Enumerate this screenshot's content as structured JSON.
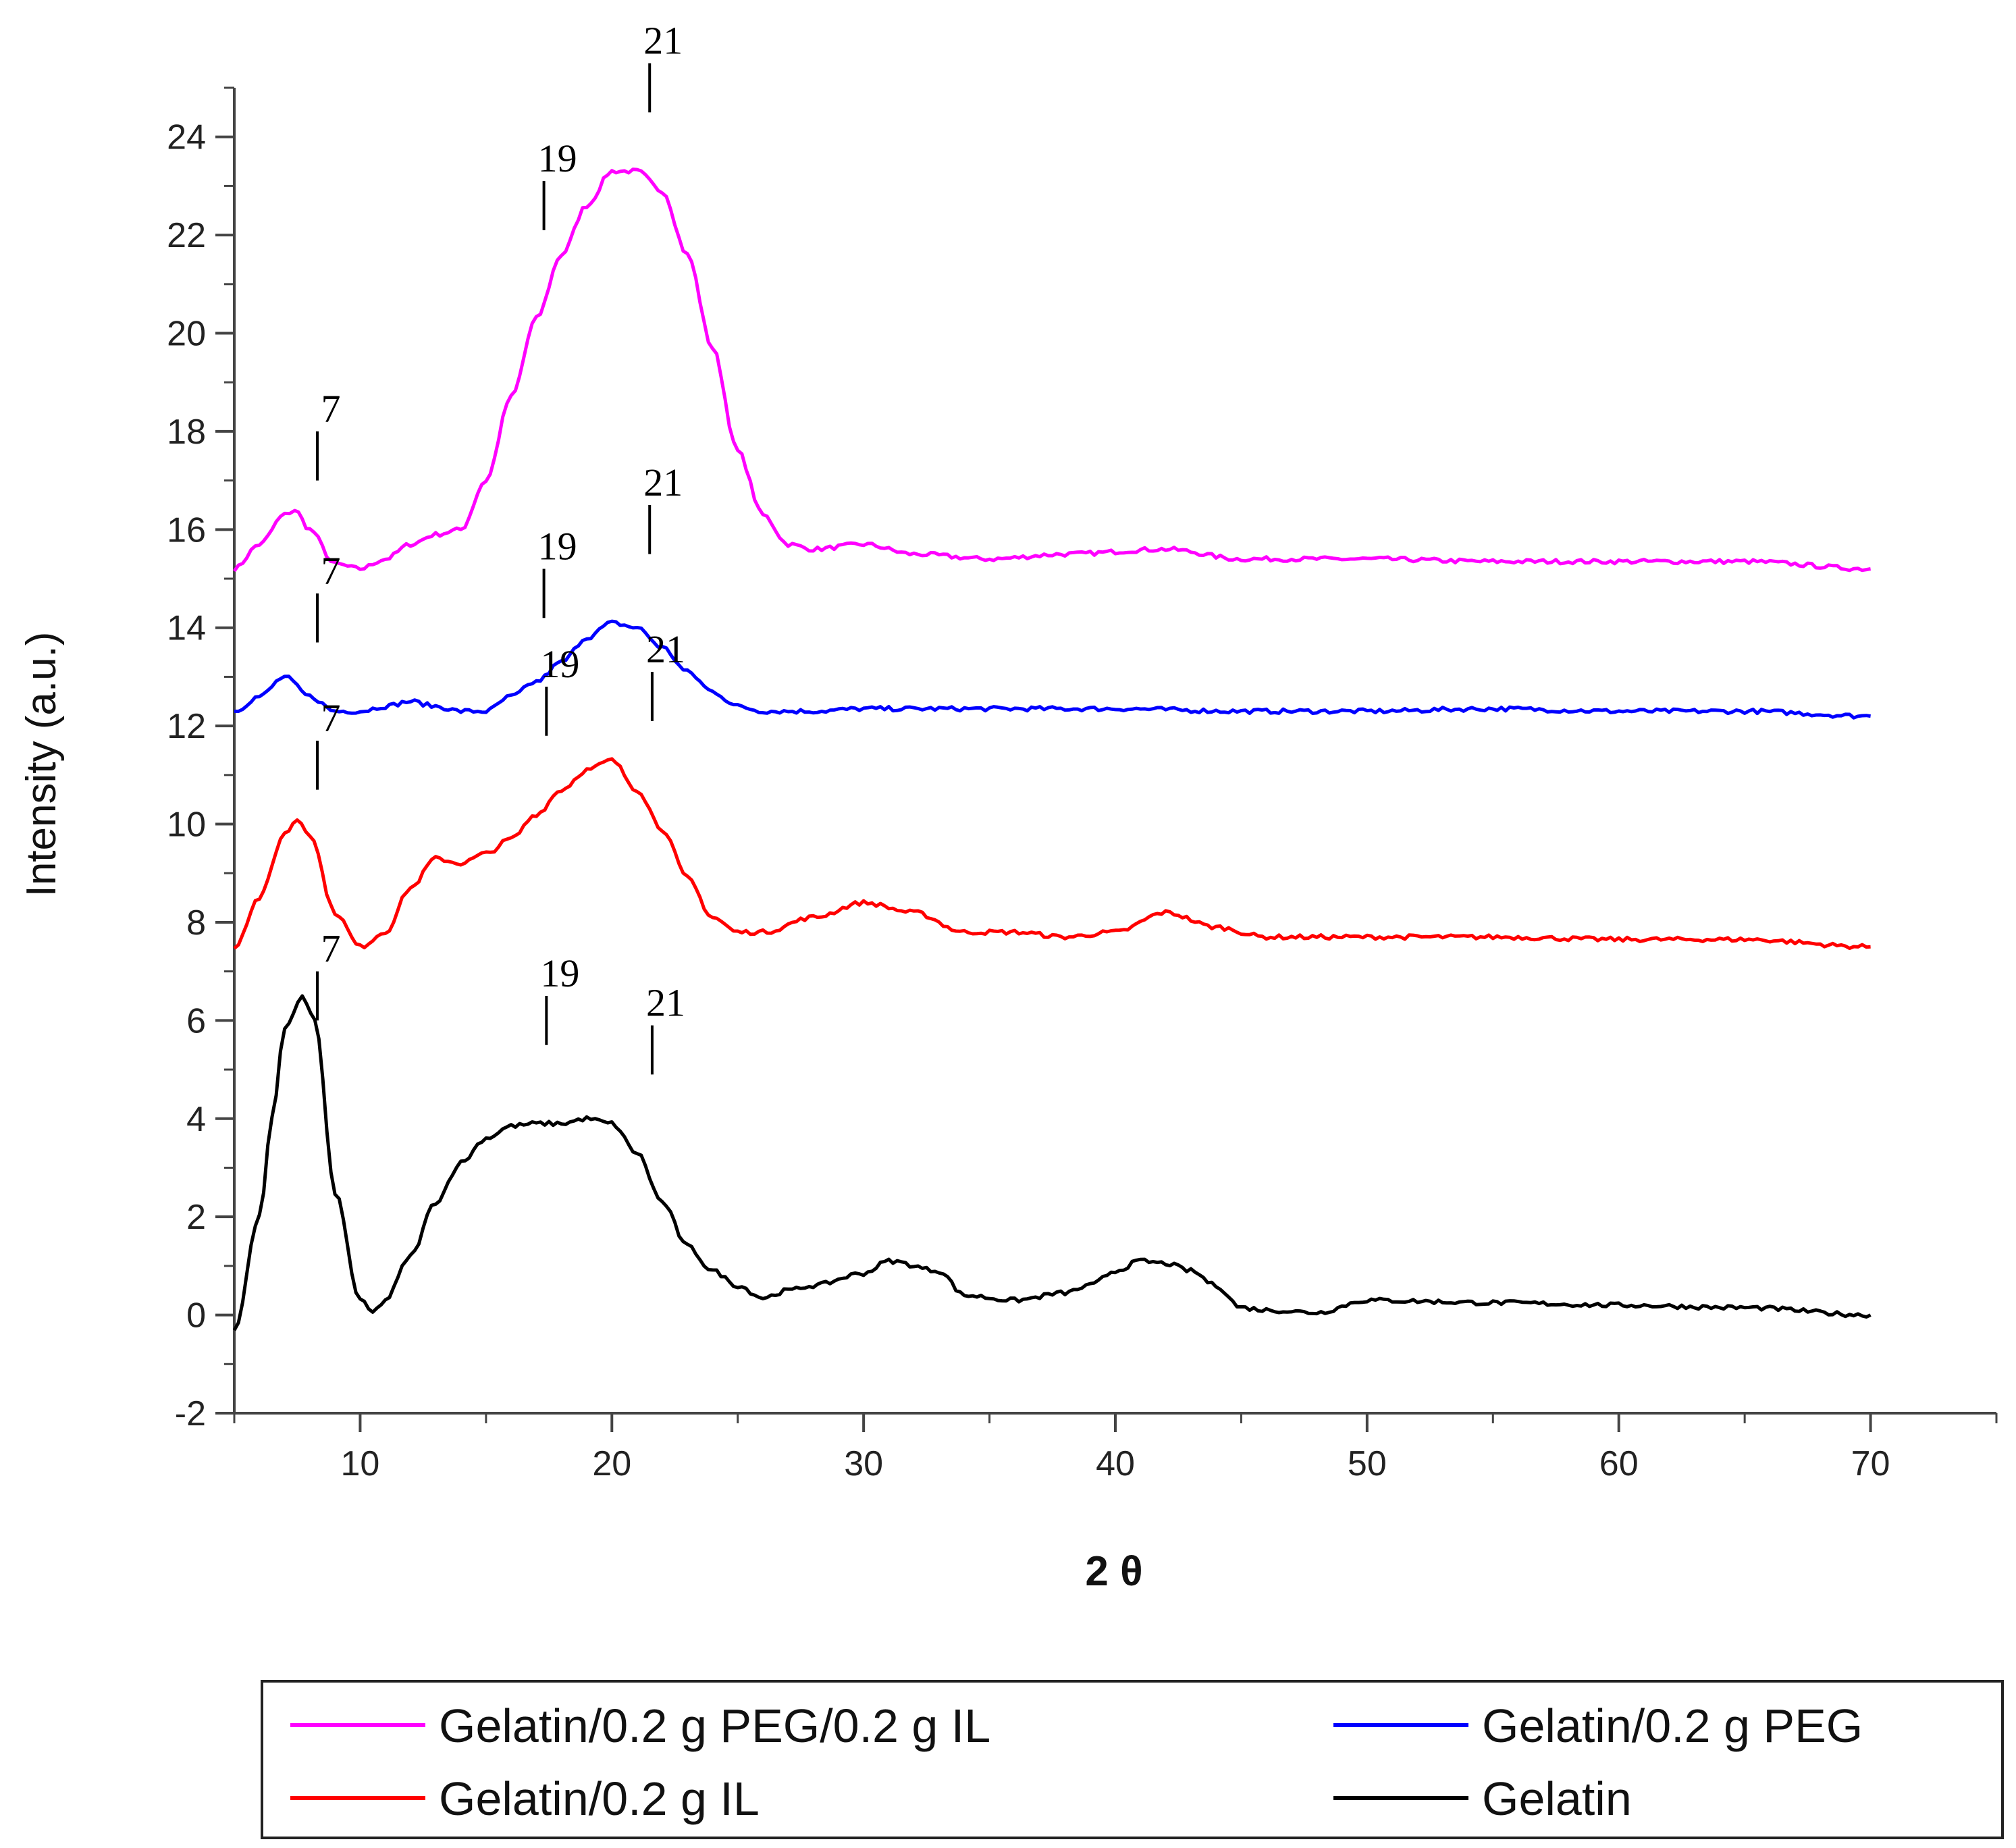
{
  "chart_data": {
    "type": "line",
    "title": "",
    "xlabel": "2 θ",
    "ylabel": "Intensity (a.u.)",
    "xlim": [
      5,
      75
    ],
    "ylim": [
      -2,
      25
    ],
    "xticks": [
      10,
      20,
      30,
      40,
      50,
      60,
      70
    ],
    "yticks": [
      -2,
      0,
      2,
      4,
      6,
      8,
      10,
      12,
      14,
      16,
      18,
      20,
      22,
      24
    ],
    "legend_position": "bottom",
    "series": [
      {
        "name": "Gelatin/0.2 g PEG/0.2 g IL",
        "color": "#ff00ff",
        "x": [
          5,
          6,
          7,
          7.4,
          8,
          9,
          10,
          11,
          12,
          13,
          14,
          15,
          16,
          17,
          18,
          19,
          20,
          21,
          22,
          23,
          24,
          25,
          26,
          27,
          28,
          30,
          32,
          35,
          38,
          42,
          45,
          50,
          55,
          60,
          65,
          70
        ],
        "y": [
          15.2,
          15.7,
          16.3,
          16.4,
          16.0,
          15.3,
          15.2,
          15.4,
          15.7,
          15.9,
          16.0,
          17.0,
          18.7,
          20.3,
          21.6,
          22.6,
          23.3,
          23.3,
          22.9,
          21.6,
          19.7,
          17.6,
          16.3,
          15.7,
          15.6,
          15.7,
          15.5,
          15.4,
          15.5,
          15.6,
          15.4,
          15.4,
          15.35,
          15.35,
          15.35,
          15.2
        ]
      },
      {
        "name": "Gelatin/0.2 g PEG",
        "color": "#0000ff",
        "x": [
          5,
          6,
          7,
          8,
          9,
          10,
          11,
          12,
          13,
          14,
          15,
          16,
          17,
          18,
          19,
          20,
          21,
          22,
          23,
          24,
          25,
          26,
          28,
          30,
          35,
          40,
          45,
          50,
          55,
          60,
          65,
          70
        ],
        "y": [
          12.3,
          12.6,
          13.0,
          12.6,
          12.3,
          12.3,
          12.4,
          12.5,
          12.4,
          12.3,
          12.3,
          12.6,
          12.9,
          13.3,
          13.8,
          14.1,
          14.0,
          13.6,
          13.1,
          12.7,
          12.4,
          12.3,
          12.3,
          12.35,
          12.35,
          12.35,
          12.3,
          12.3,
          12.35,
          12.3,
          12.3,
          12.2
        ]
      },
      {
        "name": "Gelatin/0.2 g IL",
        "color": "#ff0000",
        "x": [
          5,
          6,
          7,
          7.5,
          8,
          9,
          10,
          11,
          12,
          13,
          14,
          15,
          16,
          17,
          18,
          19,
          20,
          21,
          22,
          23,
          24,
          25,
          26,
          28,
          30,
          32,
          34,
          36,
          38,
          40,
          42,
          44,
          46,
          50,
          55,
          60,
          65,
          70
        ],
        "y": [
          7.5,
          8.5,
          9.8,
          10.1,
          9.8,
          8.2,
          7.5,
          7.8,
          8.7,
          9.3,
          9.2,
          9.4,
          9.7,
          10.2,
          10.7,
          11.1,
          11.3,
          10.7,
          9.9,
          8.9,
          8.1,
          7.8,
          7.8,
          8.1,
          8.4,
          8.2,
          7.8,
          7.8,
          7.7,
          7.8,
          8.2,
          7.9,
          7.7,
          7.7,
          7.7,
          7.65,
          7.65,
          7.5
        ]
      },
      {
        "name": "Gelatin",
        "color": "#000000",
        "x": [
          5,
          6,
          6.5,
          7,
          7.7,
          8.2,
          9,
          10,
          10.5,
          11,
          12,
          13,
          14,
          15,
          16,
          17,
          18,
          19,
          20,
          21,
          22,
          23,
          24,
          25,
          26,
          27,
          28,
          30,
          31,
          33,
          34,
          36,
          38,
          39,
          40,
          41,
          42,
          43,
          44,
          45,
          46,
          48,
          50,
          55,
          60,
          65,
          70
        ],
        "y": [
          -0.3,
          2.0,
          4.0,
          5.8,
          6.5,
          6.0,
          2.5,
          0.3,
          0.05,
          0.3,
          1.2,
          2.3,
          3.1,
          3.6,
          3.85,
          3.9,
          3.9,
          4.0,
          3.9,
          3.3,
          2.3,
          1.4,
          0.9,
          0.6,
          0.35,
          0.5,
          0.6,
          0.85,
          1.1,
          0.9,
          0.4,
          0.3,
          0.45,
          0.6,
          0.9,
          1.1,
          1.05,
          0.9,
          0.6,
          0.15,
          0.1,
          0.05,
          0.3,
          0.25,
          0.2,
          0.15,
          0.0
        ]
      }
    ],
    "annotations": [
      {
        "label": "7",
        "x": 8.3,
        "y_bottom": 17.0,
        "y_top": 18.0
      },
      {
        "label": "19",
        "x": 17.3,
        "y_bottom": 22.1,
        "y_top": 23.1
      },
      {
        "label": "21",
        "x": 21.5,
        "y_bottom": 24.5,
        "y_top": 25.5
      },
      {
        "label": "7",
        "x": 8.3,
        "y_bottom": 13.7,
        "y_top": 14.7
      },
      {
        "label": "19",
        "x": 17.3,
        "y_bottom": 14.2,
        "y_top": 15.2
      },
      {
        "label": "21",
        "x": 21.5,
        "y_bottom": 15.5,
        "y_top": 16.5
      },
      {
        "label": "7",
        "x": 8.3,
        "y_bottom": 10.7,
        "y_top": 11.7
      },
      {
        "label": "19",
        "x": 17.4,
        "y_bottom": 11.8,
        "y_top": 12.8
      },
      {
        "label": "21",
        "x": 21.6,
        "y_bottom": 12.1,
        "y_top": 13.1
      },
      {
        "label": "7",
        "x": 8.3,
        "y_bottom": 6.0,
        "y_top": 7.0
      },
      {
        "label": "19",
        "x": 17.4,
        "y_bottom": 5.5,
        "y_top": 6.5
      },
      {
        "label": "21",
        "x": 21.6,
        "y_bottom": 4.9,
        "y_top": 5.9
      }
    ]
  }
}
